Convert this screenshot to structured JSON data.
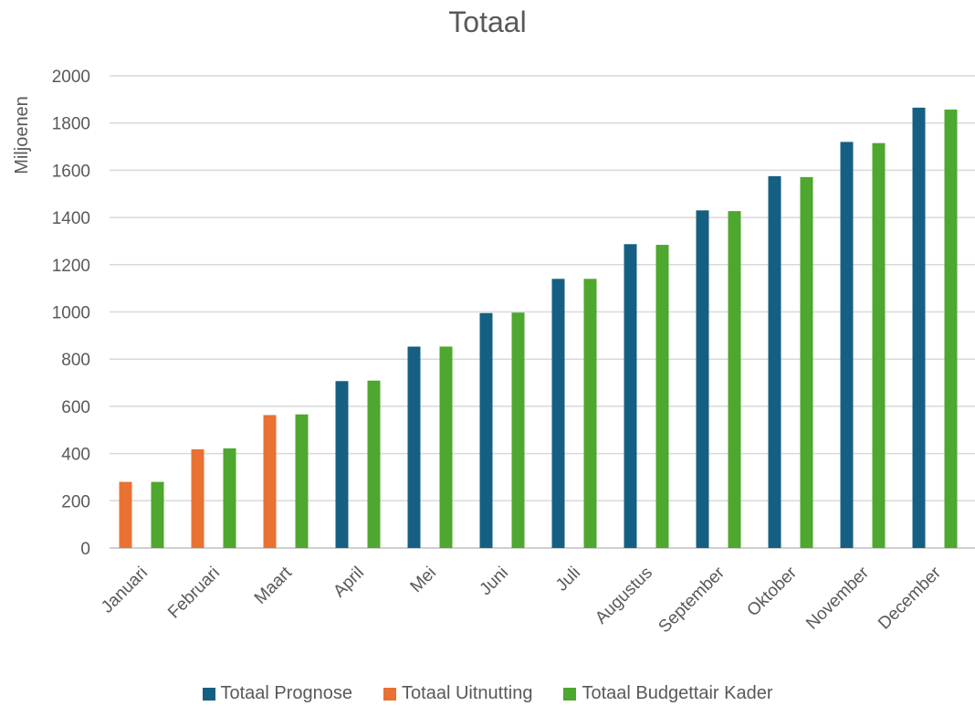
{
  "chart_data": {
    "type": "bar",
    "title": "Totaal",
    "ylabel": "Miljoenen",
    "xlabel": "",
    "ylim": [
      0,
      2000
    ],
    "yticks": [
      0,
      200,
      400,
      600,
      800,
      1000,
      1200,
      1400,
      1600,
      1800,
      2000
    ],
    "grid": true,
    "legend_position": "bottom",
    "categories": [
      "Januari",
      "Februari",
      "Maart",
      "April",
      "Mei",
      "Juni",
      "Juli",
      "Augustus",
      "September",
      "Oktober",
      "November",
      "December"
    ],
    "series": [
      {
        "name": "Totaal Prognose",
        "color": "#156082",
        "values": [
          null,
          null,
          null,
          707,
          853,
          995,
          1140,
          1287,
          1430,
          1575,
          1720,
          1865
        ]
      },
      {
        "name": "Totaal Uitnutting",
        "color": "#E97132",
        "values": [
          280,
          418,
          563,
          null,
          null,
          null,
          null,
          null,
          null,
          null,
          null,
          null
        ]
      },
      {
        "name": "Totaal Budgettair Kader",
        "color": "#4EA72E",
        "values": [
          280,
          422,
          566,
          709,
          853,
          997,
          1140,
          1284,
          1427,
          1571,
          1715,
          1857
        ]
      }
    ]
  }
}
